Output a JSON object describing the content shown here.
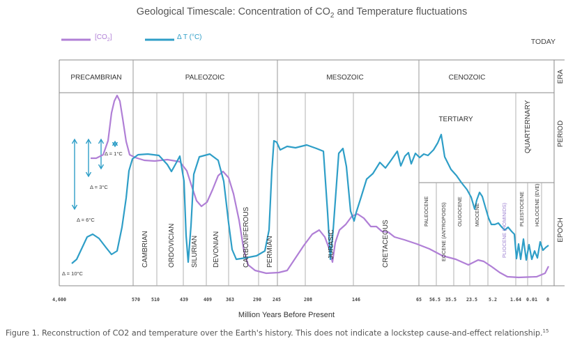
{
  "chart_data": {
    "type": "line",
    "title": "Geological Timescale: Concentration of CO",
    "title_sub": "2",
    "title_rest": " and Temperature fluctuations",
    "today_label": "TODAY",
    "xlabel": "Million Years Before Present",
    "x_ticks": [
      "4,600",
      "570",
      "510",
      "439",
      "409",
      "363",
      "290",
      "245",
      "208",
      "146",
      "65",
      "56.5",
      "35.5",
      "23.5",
      "5.2",
      "1.64",
      "0.01",
      "0"
    ],
    "legend": [
      {
        "label": "[CO",
        "sub": "2",
        "close": "]",
        "color": "#b07fd6"
      },
      {
        "label": "Δ T (°C)",
        "color": "#2e9ec7"
      }
    ],
    "row_labels": [
      "ERA",
      "PERIOD",
      "EPOCH"
    ],
    "eras": [
      "PRECAMBRIAN",
      "PALEOZOIC",
      "MESOZOIC",
      "CENOZOIC"
    ],
    "periods": [
      "CAMBRIAN",
      "ORDOVICIAN",
      "SILURIAN",
      "DEVONIAN",
      "CARBONIFEROUS",
      "PERMIAN",
      "JURASIC",
      "CRETACEOUS",
      "TERTIARY",
      "QUARTERNARY"
    ],
    "epochs": [
      "PALEOCENE",
      "EOCENE (ANTROPOIDS)",
      "OLIGOCENE",
      "MIOCENE",
      "PLIOCENE (HOMINIDS)",
      "PLEISTOCENE",
      "HOLOCENE (EVE)"
    ],
    "delta_labels": [
      "Δ = 1°C",
      "Δ = 3°C",
      "Δ = 6°C",
      "Δ = 10°C"
    ],
    "colors": {
      "co2": "#b07fd6",
      "temp": "#2e9ec7",
      "axis": "#888888",
      "divider": "#9a9a9a",
      "arrow": "#2e9ec7",
      "pliocene_text": "#9b7fd0"
    }
  },
  "caption": {
    "text": "Figure 1. Reconstruction of CO2 and temperature over the Earth's history. This does not indicate a lockstep cause-and-effect relationship.",
    "ref": "15"
  }
}
